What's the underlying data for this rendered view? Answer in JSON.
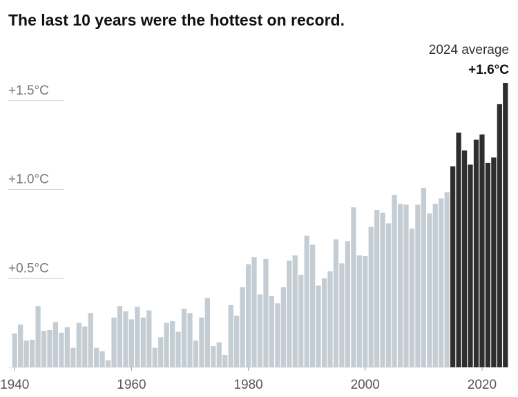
{
  "chart_data": {
    "type": "bar",
    "title": "The last 10 years were the hottest on record.",
    "annotation": "2024 average",
    "x": [
      1940,
      1941,
      1942,
      1943,
      1944,
      1945,
      1946,
      1947,
      1948,
      1949,
      1950,
      1951,
      1952,
      1953,
      1954,
      1955,
      1956,
      1957,
      1958,
      1959,
      1960,
      1961,
      1962,
      1963,
      1964,
      1965,
      1966,
      1967,
      1968,
      1969,
      1970,
      1971,
      1972,
      1973,
      1974,
      1975,
      1976,
      1977,
      1978,
      1979,
      1980,
      1981,
      1982,
      1983,
      1984,
      1985,
      1986,
      1987,
      1988,
      1989,
      1990,
      1991,
      1992,
      1993,
      1994,
      1995,
      1996,
      1997,
      1998,
      1999,
      2000,
      2001,
      2002,
      2003,
      2004,
      2005,
      2006,
      2007,
      2008,
      2009,
      2010,
      2011,
      2012,
      2013,
      2014,
      2015,
      2016,
      2017,
      2018,
      2019,
      2020,
      2021,
      2022,
      2023,
      2024
    ],
    "values": [
      0.19,
      0.24,
      0.15,
      0.155,
      0.345,
      0.205,
      0.21,
      0.255,
      0.195,
      0.225,
      0.11,
      0.25,
      0.23,
      0.305,
      0.11,
      0.09,
      0.04,
      0.28,
      0.345,
      0.315,
      0.27,
      0.34,
      0.28,
      0.32,
      0.11,
      0.17,
      0.25,
      0.26,
      0.2,
      0.33,
      0.305,
      0.15,
      0.28,
      0.39,
      0.12,
      0.14,
      0.07,
      0.35,
      0.29,
      0.45,
      0.58,
      0.62,
      0.41,
      0.61,
      0.4,
      0.36,
      0.45,
      0.6,
      0.63,
      0.52,
      0.74,
      0.69,
      0.46,
      0.5,
      0.54,
      0.72,
      0.585,
      0.71,
      0.9,
      0.63,
      0.625,
      0.79,
      0.885,
      0.87,
      0.81,
      0.97,
      0.92,
      0.915,
      0.78,
      0.915,
      1.01,
      0.865,
      0.92,
      0.95,
      0.985,
      1.13,
      1.32,
      1.22,
      1.14,
      1.28,
      1.31,
      1.15,
      1.18,
      1.48,
      1.6
    ],
    "value_labels": [
      null,
      null,
      null,
      null,
      null,
      null,
      null,
      null,
      null,
      null,
      null,
      null,
      null,
      null,
      null,
      null,
      null,
      null,
      null,
      null,
      null,
      null,
      null,
      null,
      null,
      null,
      null,
      null,
      null,
      null,
      null,
      null,
      null,
      null,
      null,
      null,
      null,
      null,
      null,
      null,
      null,
      null,
      null,
      null,
      null,
      null,
      null,
      null,
      null,
      null,
      null,
      null,
      null,
      null,
      null,
      null,
      null,
      null,
      null,
      null,
      null,
      null,
      null,
      null,
      null,
      null,
      null,
      null,
      null,
      null,
      null,
      null,
      null,
      null,
      null,
      null,
      null,
      null,
      null,
      null,
      null,
      null,
      null,
      null,
      "+1.6°C"
    ],
    "color": "#c5cdd4",
    "highlight_color": "#2e2e2e",
    "highlight_last": 10,
    "xlim": [
      1939.5,
      2024.5
    ],
    "xticks": [
      1940,
      1960,
      1980,
      2000,
      2020
    ],
    "ylim": [
      0,
      1.6
    ],
    "yticks": [
      {
        "value": 0.5,
        "label": "+0.5°C"
      },
      {
        "value": 1.0,
        "label": "+1.0°C"
      },
      {
        "value": 1.5,
        "label": "+1.5°C"
      }
    ],
    "grid": true
  }
}
